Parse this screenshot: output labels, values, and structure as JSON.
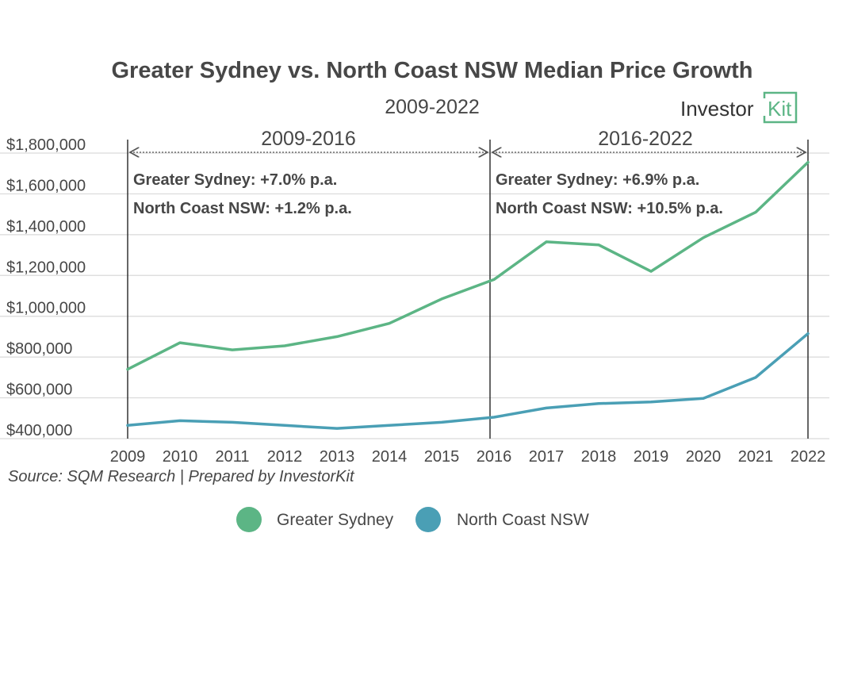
{
  "colors": {
    "greater_sydney": "#5cb585",
    "north_coast": "#4a9fb5",
    "grid": "#d9d9d9",
    "axis_text": "#474747",
    "brand": "#5cb585"
  },
  "logo": {
    "part1": "Investor",
    "part2": "Kit"
  },
  "annotations": {
    "left": {
      "period": "2009-2016",
      "line1": "Greater Sydney: +7.0% p.a.",
      "line2": "North Coast NSW: +1.2% p.a."
    },
    "right": {
      "period": "2016-2022",
      "line1": "Greater Sydney: +6.9% p.a.",
      "line2": "North Coast NSW: +10.5% p.a."
    }
  },
  "source": "Source:  SQM Research | Prepared by InvestorKit",
  "chart_data": {
    "type": "line",
    "title": "Greater Sydney vs. North Coast NSW Median Price Growth",
    "subtitle": "2009-2022",
    "x": [
      "2009",
      "2010",
      "2011",
      "2012",
      "2013",
      "2014",
      "2015",
      "2016",
      "2017",
      "2018",
      "2019",
      "2020",
      "2021",
      "2022"
    ],
    "ylim": [
      400000,
      1800000
    ],
    "yticks": [
      "$400,000",
      "$600,000",
      "$800,000",
      "$1,000,000",
      "$1,200,000",
      "$1,400,000",
      "$1,600,000",
      "$1,800,000"
    ],
    "ytick_values": [
      400000,
      600000,
      800000,
      1000000,
      1200000,
      1400000,
      1600000,
      1800000
    ],
    "grid": true,
    "legend": "bottom",
    "series": [
      {
        "name": "Greater Sydney",
        "values": [
          740000,
          870000,
          835000,
          855000,
          900000,
          965000,
          1085000,
          1180000,
          1365000,
          1350000,
          1220000,
          1385000,
          1510000,
          1755000
        ]
      },
      {
        "name": "North Coast NSW",
        "values": [
          465000,
          488000,
          480000,
          465000,
          450000,
          465000,
          480000,
          505000,
          550000,
          572000,
          580000,
          597000,
          700000,
          915000
        ]
      }
    ]
  }
}
